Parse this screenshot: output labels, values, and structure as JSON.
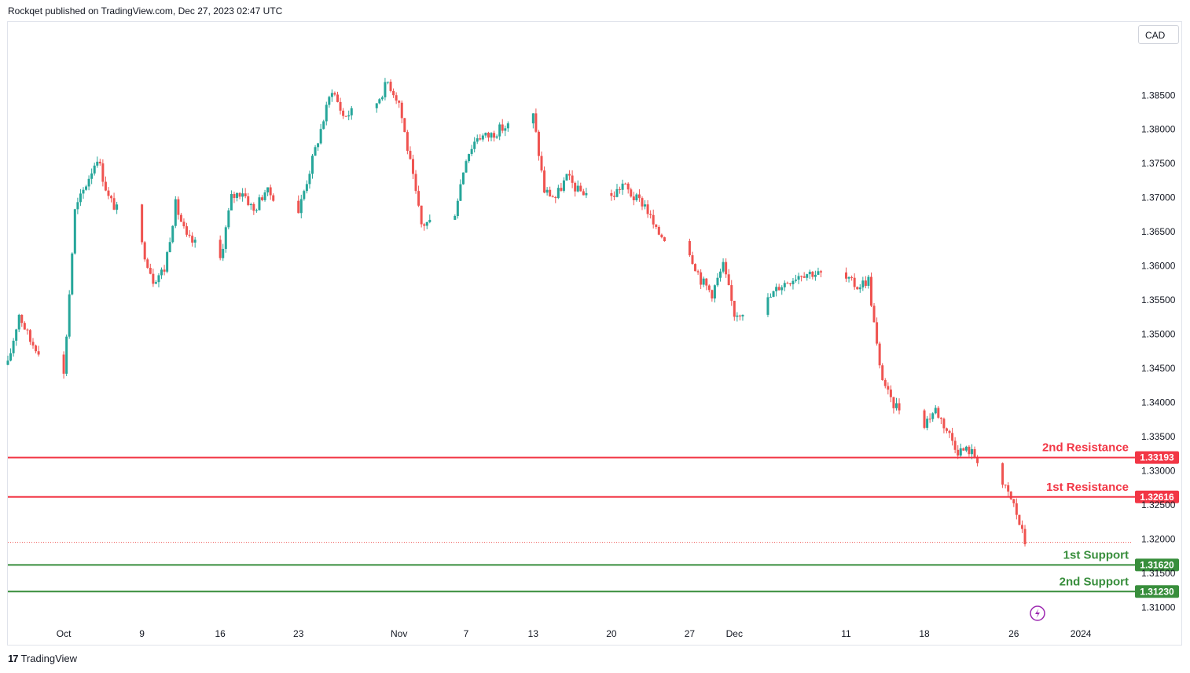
{
  "header": {
    "published": "Rockqet published on TradingView.com, Dec 27, 2023 02:47 UTC"
  },
  "currency_label": "CAD",
  "footer": {
    "brand_mark": "17",
    "brand_name": "TradingView"
  },
  "colors": {
    "up": "#26a69a",
    "down": "#ef5350",
    "resistance": "#f23645",
    "support": "#388e3c"
  },
  "chart_data": {
    "type": "candlestick",
    "x_ticks": [
      "Oct",
      "9",
      "16",
      "23",
      "Nov",
      "7",
      "13",
      "20",
      "27",
      "Dec",
      "11",
      "18",
      "26",
      "2024"
    ],
    "y_ticks": [
      "1.38500",
      "1.38000",
      "1.37500",
      "1.37000",
      "1.36500",
      "1.36000",
      "1.35500",
      "1.35000",
      "1.34500",
      "1.34000",
      "1.33500",
      "1.33000",
      "1.32500",
      "1.32000",
      "1.31500",
      "1.31000"
    ],
    "y_tick_values": [
      1.385,
      1.38,
      1.375,
      1.37,
      1.365,
      1.36,
      1.355,
      1.35,
      1.345,
      1.34,
      1.335,
      1.33,
      1.325,
      1.32,
      1.315,
      1.31
    ],
    "ylim": [
      1.3075,
      1.3955
    ],
    "price_path": [
      [
        "2023-09-27",
        1.3455
      ],
      [
        "2023-09-28",
        1.353
      ],
      [
        "2023-09-29",
        1.349
      ],
      [
        "2023-10-02",
        1.344
      ],
      [
        "2023-10-03",
        1.368
      ],
      [
        "2023-10-04",
        1.372
      ],
      [
        "2023-10-05",
        1.376
      ],
      [
        "2023-10-06",
        1.37
      ],
      [
        "2023-10-09",
        1.363
      ],
      [
        "2023-10-10",
        1.358
      ],
      [
        "2023-10-11",
        1.3595
      ],
      [
        "2023-10-12",
        1.369
      ],
      [
        "2023-10-13",
        1.364
      ],
      [
        "2023-10-16",
        1.361
      ],
      [
        "2023-10-17",
        1.37
      ],
      [
        "2023-10-18",
        1.371
      ],
      [
        "2023-10-19",
        1.368
      ],
      [
        "2023-10-20",
        1.371
      ],
      [
        "2023-10-23",
        1.368
      ],
      [
        "2023-10-24",
        1.374
      ],
      [
        "2023-10-25",
        1.38
      ],
      [
        "2023-10-26",
        1.386
      ],
      [
        "2023-10-27",
        1.382
      ],
      [
        "2023-10-30",
        1.384
      ],
      [
        "2023-10-31",
        1.387
      ],
      [
        "2023-11-01",
        1.384
      ],
      [
        "2023-11-02",
        1.375
      ],
      [
        "2023-11-03",
        1.366
      ],
      [
        "2023-11-06",
        1.368
      ],
      [
        "2023-11-07",
        1.376
      ],
      [
        "2023-11-08",
        1.379
      ],
      [
        "2023-11-09",
        1.379
      ],
      [
        "2023-11-10",
        1.38
      ],
      [
        "2023-11-13",
        1.382
      ],
      [
        "2023-11-14",
        1.371
      ],
      [
        "2023-11-15",
        1.37
      ],
      [
        "2023-11-16",
        1.373
      ],
      [
        "2023-11-17",
        1.371
      ],
      [
        "2023-11-20",
        1.37
      ],
      [
        "2023-11-21",
        1.372
      ],
      [
        "2023-11-22",
        1.37
      ],
      [
        "2023-11-23",
        1.369
      ],
      [
        "2023-11-24",
        1.365
      ],
      [
        "2023-11-27",
        1.362
      ],
      [
        "2023-11-28",
        1.358
      ],
      [
        "2023-11-29",
        1.356
      ],
      [
        "2023-11-30",
        1.36
      ],
      [
        "2023-12-01",
        1.353
      ],
      [
        "2023-12-04",
        1.355
      ],
      [
        "2023-12-05",
        1.357
      ],
      [
        "2023-12-06",
        1.358
      ],
      [
        "2023-12-07",
        1.359
      ],
      [
        "2023-12-08",
        1.359
      ],
      [
        "2023-12-11",
        1.358
      ],
      [
        "2023-12-12",
        1.357
      ],
      [
        "2023-12-13",
        1.358
      ],
      [
        "2023-12-14",
        1.345
      ],
      [
        "2023-12-15",
        1.34
      ],
      [
        "2023-12-18",
        1.337
      ],
      [
        "2023-12-19",
        1.339
      ],
      [
        "2023-12-20",
        1.336
      ],
      [
        "2023-12-21",
        1.333
      ],
      [
        "2023-12-22",
        1.333
      ],
      [
        "2023-12-25",
        1.328
      ],
      [
        "2023-12-26",
        1.325
      ],
      [
        "2023-12-27",
        1.3195
      ]
    ],
    "last_price": 1.3195,
    "levels": [
      {
        "label": "2nd Resistance",
        "value": 1.33193,
        "tag": "1.33193",
        "kind": "resistance"
      },
      {
        "label": "1st Resistance",
        "value": 1.32616,
        "tag": "1.32616",
        "kind": "resistance"
      },
      {
        "label": "1st Support",
        "value": 1.3162,
        "tag": "1.31620",
        "kind": "support"
      },
      {
        "label": "2nd Support",
        "value": 1.3123,
        "tag": "1.31230",
        "kind": "support"
      }
    ],
    "grid": false
  }
}
